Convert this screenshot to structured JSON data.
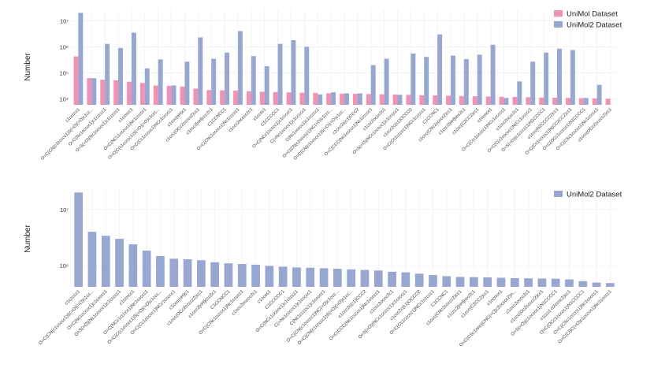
{
  "colors": {
    "unimol": "#ef92b4",
    "unimol2": "#97a7d1"
  },
  "chart_data": [
    {
      "type": "bar",
      "ylabel": "Number",
      "yscale": "log",
      "ylim": [
        6000,
        27000000
      ],
      "yticks": [
        {
          "value": 10000,
          "label": "10⁴"
        },
        {
          "value": 100000,
          "label": "10⁵"
        },
        {
          "value": 1000000,
          "label": "10⁶"
        },
        {
          "value": 10000000,
          "label": "10⁷"
        }
      ],
      "legend_position": "top-right",
      "categories": [
        "c1ccccc1",
        "O=C(CN(c1ccccc1)S(=O)(=O)c1cc...",
        "O=C(Nc1ccccc1)c1ccccc1",
        "O=S(=O)(Nc1ccccc1)c1ccccc1",
        "c1ccncc1",
        "O=C(NCc1ccccc1)Nc1ccccc1",
        "O=C(C(c1ccccc1)S(=O)(=O)c1ccc...",
        "O=C(Cc1ccccc1)NCc1ccccc1",
        "c1ccc(nH)c1",
        "c1ccc(OCc2ccccc2)cc1",
        "c1ccc2[nH]ccc2c1",
        "C1CCNCC1",
        "O=C(CNc1ccccc1)Nc1ccccc1",
        "c1ccc2ncccc2c1",
        "c1ccsc1",
        "C1CCCCC1",
        "O=C(NCc1ccccc1)c1ccccc1",
        "C(=Nc1ccccc1)c1ccccc1",
        "C(Nc1ccccc1)c1ccccc1",
        "O=C(CN(c1ccccc1)NC(=O)c1ccc...",
        "O=C(CN(c1ccccc1)S(=O)(=O)c1cc...",
        "c1ccc2c(c1)CCC2",
        "O=C(CCC(Nc1ccccc1)Nc1ccccc1",
        "c1ccc2occc2c1",
        "O=S(=O)(NCc1ccccc1)c1ccccc1",
        "c1ccc2c(c1)OCCO2",
        "O=C(Cc1ccccc1)NCc1ccccc1",
        "C1CCNC1",
        "c1ccc(CNc2ccccc2)cc1",
        "c1ccc2[nH]ncc2c1",
        "c1ccc(C2CC2)cc1",
        "c1ncncn1",
        "O=C(C(c1ccccc1)NCc1ccccc1",
        "c1ccc2occc2c1",
        "O=C(C(c1ccccc1)N(Cc1ccccc1",
        "O=S(=O)(c1ccccc1)N1CCCC1",
        "c1ccc(N2CCCC2)cc1",
        "O=C(Cc1ccccc1)N(CC2CC2)cc1",
        "O=C(OCc1ccccc1)N1CCCC1",
        "O=C(CSc1ccccc1)Nc1ccccc1",
        "c1ccc(OCc2ccccc2)cc1"
      ],
      "series": [
        {
          "name": "UniMol Dataset",
          "values": [
            430000,
            63000,
            55000,
            52000,
            46000,
            41000,
            33000,
            32000,
            30000,
            25000,
            22000,
            21500,
            21000,
            20000,
            19000,
            18500,
            18000,
            17500,
            17000,
            16500,
            16000,
            15800,
            15500,
            15200,
            14800,
            14500,
            14000,
            13700,
            13400,
            13100,
            12800,
            12500,
            12200,
            12000,
            11700,
            11400,
            11200,
            11000,
            10800,
            10600,
            10400
          ]
        },
        {
          "name": "UniMol2 Dataset",
          "values": [
            20000000,
            63000,
            1300000,
            900000,
            3500000,
            150000,
            330000,
            33000,
            270000,
            2300000,
            350000,
            600000,
            4000000,
            440000,
            180000,
            1300000,
            1800000,
            1000000,
            15000,
            18000,
            16500,
            16500,
            200000,
            350000,
            14500,
            550000,
            410000,
            3000000,
            460000,
            340000,
            500000,
            1200000,
            11000,
            47000,
            270000,
            600000,
            850000,
            750000,
            11000,
            35000,
            0
          ]
        }
      ]
    },
    {
      "type": "bar",
      "ylabel": "Number",
      "yscale": "log",
      "ylim": [
        420000,
        23000000
      ],
      "yticks": [
        {
          "value": 1000000,
          "label": "10⁶"
        },
        {
          "value": 10000000,
          "label": "10⁷"
        }
      ],
      "legend_position": "top-right",
      "categories": [
        "c1ccccc1",
        "O=C(CN(c1ccccc1)S(=O)(=O)c1cc...",
        "O=C(Nc1ccccc1)c1ccccc1",
        "O=S(=O)(Nc1ccccc1)c1ccccc1",
        "c1ccncc1",
        "O=C(NCc1ccccc1)Nc1ccccc1",
        "O=C(C(c1ccccc1)S(=O)(=O)c1ccc...",
        "O=C(Cc1ccccc1)NCc1ccccc1",
        "c1ccc(nH)c1",
        "c1ccc(OCc2ccccc2)cc1",
        "c1ccc2[nH]ccc2c1",
        "C1CCNCC1",
        "O=C(CNc1ccccc1)Nc1ccccc1",
        "c1ccc2ncccc2c1",
        "c1ccsc1",
        "C1CCCCC1",
        "O=C(NCc1ccccc1)c1ccccc1",
        "C(=Nc1ccccc1)c1ccccc1",
        "C(Nc1ccccc1)c1ccccc1",
        "O=C(CN(c1ccccc1)NC(=O)c1ccc...",
        "O=C(CN(c1ccccc1)S(=O)(=O)c1cc...",
        "c1ccc2c(c1)CCC2",
        "O=C(CCC(Nc1ccccc1)Nc1ccccc1",
        "c1ccc2occc2c1",
        "O=S(=O)(NCc1ccccc1)c1ccccc1",
        "c1ccc2c(c1)OCCO2",
        "O=C(Cc1ccccc1)NCc1ccccc1",
        "C1CCNC1",
        "c1ccc(CNc2ccccc2)cc1",
        "c1ccc2[nH]ncc2c1",
        "c1ccc(C2CC2)cc1",
        "c1ncncn1",
        "O=C(CSc1nnc(CNC(=O)c2ccccc2)n...",
        "c1ccc2occc2c1",
        "c1ccc(Oc2ccccc2)cc1",
        "O=S(=O)(c1ccccc1)N1CCCC1",
        "c1ccc(-n2ccnc2)cc1",
        "O=C(OCc1ccccc1)N1CCCC1",
        "O=C(CSc1ccccc1)Nc1ccccc1",
        "O=C(CSC(=O)c1ccccc1)Nc1ccccc1"
      ],
      "series": [
        {
          "name": "UniMol2 Dataset",
          "values": [
            20000000,
            4000000,
            3400000,
            3000000,
            2400000,
            1850000,
            1480000,
            1330000,
            1300000,
            1250000,
            1150000,
            1100000,
            1070000,
            1040000,
            990000,
            960000,
            930000,
            920000,
            900000,
            880000,
            860000,
            840000,
            820000,
            780000,
            760000,
            720000,
            680000,
            650000,
            630000,
            625000,
            620000,
            610000,
            600000,
            595000,
            590000,
            585000,
            570000,
            530000,
            500000,
            490000
          ]
        }
      ]
    }
  ]
}
